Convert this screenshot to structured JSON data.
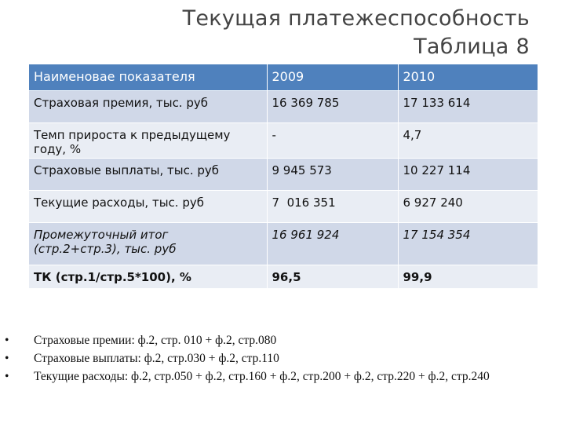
{
  "header": {
    "title": "Текущая платежеспособность",
    "subtitle": "Таблица 8"
  },
  "table": {
    "columns": [
      "Наименовае показателя",
      "2009",
      "2010"
    ],
    "rows": [
      [
        "Страховая премия, тыс. руб",
        "16 369 785",
        "17 133 614"
      ],
      [
        "Темп прироста к предыдущему году, %",
        "-",
        "4,7"
      ],
      [
        "Страховые выплаты, тыс. руб",
        "9 945 573",
        "10 227 114"
      ],
      [
        "Текущие расходы, тыс. руб",
        "7  016 351",
        "6 927 240"
      ],
      [
        "Промежуточный итог (стр.2+стр.3), тыс. руб",
        "16 961 924",
        "17 154 354"
      ],
      [
        "ТК (стр.1/стр.5*100), %",
        "96,5",
        "99,9"
      ]
    ]
  },
  "notes": [
    "Страховые премии: ф.2, стр. 010 + ф.2, стр.080",
    "Страховые выплаты: ф.2, стр.030 + ф.2, стр.110",
    "Текущие расходы: ф.2, стр.050 + ф.2, стр.160 + ф.2, стр.200 + ф.2, стр.220 + ф.2, стр.240"
  ]
}
